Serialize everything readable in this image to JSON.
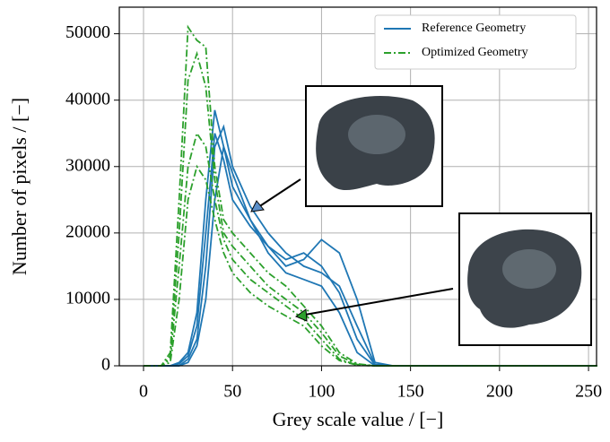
{
  "chart_data": {
    "type": "line",
    "xlabel": "Grey scale value / [−]",
    "ylabel": "Number of pixels / [−]",
    "x": [
      0,
      10,
      15,
      20,
      25,
      30,
      35,
      40,
      45,
      50,
      60,
      70,
      80,
      90,
      100,
      110,
      120,
      130,
      140,
      255
    ],
    "series": [
      {
        "name": "Reference Geometry",
        "color": "#1f77b4",
        "dash": "solid",
        "lines": [
          [
            0,
            0,
            0,
            500,
            2000,
            8000,
            25000,
            38500,
            33000,
            27000,
            22000,
            18000,
            15000,
            16000,
            19000,
            17000,
            10000,
            500,
            0,
            0
          ],
          [
            0,
            0,
            0,
            0,
            1000,
            4000,
            15000,
            33000,
            36000,
            30000,
            24000,
            20000,
            17000,
            15000,
            14000,
            12000,
            6000,
            200,
            0,
            0
          ],
          [
            0,
            0,
            0,
            0,
            500,
            3000,
            10000,
            25000,
            33000,
            29000,
            22000,
            17000,
            14000,
            13000,
            12000,
            8000,
            2000,
            0,
            0,
            0
          ],
          [
            0,
            0,
            0,
            300,
            1500,
            6000,
            20000,
            35000,
            31000,
            25000,
            21000,
            18000,
            16000,
            17000,
            15000,
            11000,
            4000,
            100,
            0,
            0
          ]
        ]
      },
      {
        "name": "Optimized Geometry",
        "color": "#2ca02c",
        "dash": "dashdot",
        "lines": [
          [
            0,
            0,
            2000,
            25000,
            51000,
            49000,
            48000,
            30000,
            22000,
            20000,
            17000,
            14000,
            12000,
            9000,
            6000,
            2000,
            300,
            0,
            0,
            0
          ],
          [
            0,
            0,
            1500,
            20000,
            43000,
            47000,
            42000,
            28000,
            20000,
            18000,
            15000,
            12000,
            10000,
            8000,
            5000,
            1500,
            200,
            0,
            0,
            0
          ],
          [
            0,
            0,
            1000,
            15000,
            30000,
            35000,
            33000,
            25000,
            19000,
            16000,
            13000,
            11000,
            9000,
            7000,
            4000,
            1000,
            100,
            0,
            0,
            0
          ],
          [
            0,
            0,
            500,
            10000,
            25000,
            30000,
            28000,
            22000,
            17000,
            14000,
            11000,
            9000,
            7500,
            6000,
            3000,
            800,
            100,
            0,
            0,
            0
          ]
        ]
      }
    ],
    "xlim": [
      -13.6,
      254.5
    ],
    "ylim": [
      0,
      54000
    ],
    "xticks": [
      0,
      50,
      100,
      150,
      200,
      250
    ],
    "yticks": [
      0,
      10000,
      20000,
      30000,
      40000,
      50000
    ],
    "grid": true,
    "legend": "upper right"
  }
}
